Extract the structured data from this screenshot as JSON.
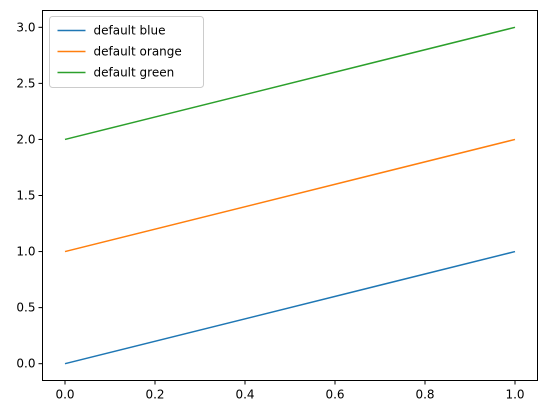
{
  "chart_data": {
    "type": "line",
    "title": "",
    "xlabel": "",
    "ylabel": "",
    "xlim": [
      -0.05,
      1.05
    ],
    "ylim": [
      -0.15,
      3.15
    ],
    "xticks": [
      0.0,
      0.2,
      0.4,
      0.6,
      0.8,
      1.0
    ],
    "xtick_labels": [
      "0.0",
      "0.2",
      "0.4",
      "0.6",
      "0.8",
      "1.0"
    ],
    "yticks": [
      0.0,
      0.5,
      1.0,
      1.5,
      2.0,
      2.5,
      3.0
    ],
    "ytick_labels": [
      "0.0",
      "0.5",
      "1.0",
      "1.5",
      "2.0",
      "2.5",
      "3.0"
    ],
    "grid": false,
    "legend_position": "top-left",
    "series": [
      {
        "name": "default blue",
        "color": "#1f77b4",
        "x": [
          0,
          1
        ],
        "y": [
          0,
          1
        ]
      },
      {
        "name": "default orange",
        "color": "#ff7f0e",
        "x": [
          0,
          1
        ],
        "y": [
          1,
          2
        ]
      },
      {
        "name": "default green",
        "color": "#2ca02c",
        "x": [
          0,
          1
        ],
        "y": [
          2,
          3
        ]
      }
    ]
  }
}
